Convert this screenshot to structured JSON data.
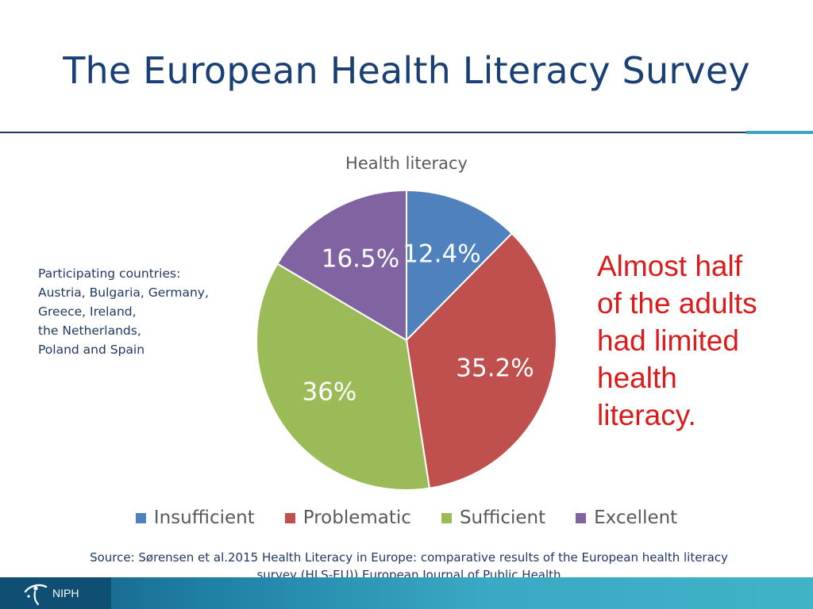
{
  "slide": {
    "title": "The European Health Literacy Survey",
    "countries": {
      "heading": "Participating countries:",
      "lines": [
        "Austria, Bulgaria, Germany,",
        "Greece, Ireland,",
        "the Netherlands,",
        "Poland and Spain"
      ]
    },
    "callout_lines": [
      "Almost half",
      "of the adults",
      "had limited",
      "health",
      "literacy."
    ],
    "source_lines": [
      "Source: Sørensen et al.2015 Health Literacy in Europe: comparative results of the European health literacy",
      "survey (HLS-EU)).European Journal of Public Health"
    ],
    "footer": {
      "org": "NIPH"
    }
  },
  "colors": {
    "title": "#1a3f73",
    "callout": "#d91b1b",
    "footer": "#1f7fa5"
  },
  "chart_data": {
    "type": "pie",
    "title": "Health literacy",
    "categories": [
      "Insufficient",
      "Problematic",
      "Sufficient",
      "Excellent"
    ],
    "values": [
      12.4,
      35.2,
      36,
      16.5
    ],
    "labels": [
      "12.4%",
      "35.2%",
      "36%",
      "16.5%"
    ],
    "colors": [
      "#4f81bd",
      "#c0504d",
      "#9bbb59",
      "#8064a2"
    ],
    "label_colors": [
      "#ffffff",
      "#ffffff",
      "#ffffff",
      "#ffffff"
    ],
    "legend_position": "bottom",
    "start_angle_deg": 0,
    "direction": "clockwise"
  }
}
